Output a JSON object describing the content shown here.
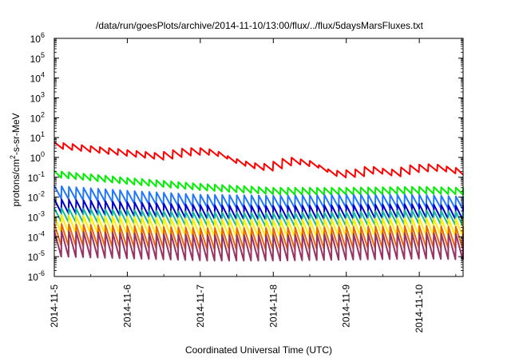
{
  "chart_data": {
    "type": "line",
    "title": "/data/run/goesPlots/archive/2014-11-10/13:00/flux/../flux/5daysMarsFluxes.txt",
    "xlabel": "Coordinated Universal Time (UTC)",
    "ylabel_parts": {
      "main": "protons/cm",
      "sup": "2",
      "rest": "-s-sr-MeV"
    },
    "x_ticks": [
      "2014-11-5",
      "2014-11-6",
      "2014-11-7",
      "2014-11-8",
      "2014-11-9",
      "2014-11-10"
    ],
    "x_range_days": [
      0,
      5.6
    ],
    "y_scale": "log",
    "y_exponents": [
      -6,
      -5,
      -4,
      -3,
      -2,
      -1,
      0,
      1,
      2,
      3,
      4,
      5,
      6
    ],
    "y_tick_base": "10",
    "grid": false,
    "legend": "none",
    "series": [
      {
        "color": "#ff0000",
        "kind": "sawtooth",
        "period_days": 0.125,
        "points_day_log10": [
          [
            0,
            0.6
          ],
          [
            0.5,
            0.4
          ],
          [
            1.0,
            0.2
          ],
          [
            1.4,
            0.05
          ],
          [
            1.8,
            0.3
          ],
          [
            2.0,
            0.3
          ],
          [
            2.2,
            0.2
          ],
          [
            2.4,
            -0.15
          ],
          [
            2.7,
            -0.45
          ],
          [
            2.9,
            -0.5
          ],
          [
            3.2,
            -0.15
          ],
          [
            3.5,
            -0.35
          ],
          [
            3.8,
            -0.85
          ],
          [
            4.1,
            -0.8
          ],
          [
            4.3,
            -0.6
          ],
          [
            4.6,
            -0.8
          ],
          [
            4.9,
            -0.55
          ],
          [
            5.2,
            -0.5
          ],
          [
            5.4,
            -0.65
          ],
          [
            5.6,
            -0.75
          ]
        ],
        "amplitude": 0.35
      },
      {
        "color": "#00ee00",
        "kind": "sawtooth",
        "period_days": 0.1,
        "points_day_log10": [
          [
            0,
            -0.85
          ],
          [
            1.0,
            -1.2
          ],
          [
            2.0,
            -1.5
          ],
          [
            3.0,
            -1.7
          ],
          [
            4.0,
            -1.7
          ],
          [
            5.0,
            -1.65
          ],
          [
            5.6,
            -1.7
          ]
        ],
        "amplitude": 0.35
      },
      {
        "color": "#2277ff",
        "kind": "sawtooth",
        "period_days": 0.1,
        "points_day_log10": [
          [
            0,
            -1.75
          ],
          [
            1.0,
            -2.0
          ],
          [
            2.0,
            -2.2
          ],
          [
            3.0,
            -2.25
          ],
          [
            4.0,
            -2.2
          ],
          [
            5.0,
            -2.2
          ],
          [
            5.6,
            -2.3
          ]
        ],
        "amplitude": 0.65
      },
      {
        "color": "#0000cc",
        "kind": "sawtooth",
        "period_days": 0.1,
        "points_day_log10": [
          [
            0,
            -2.45
          ],
          [
            1.0,
            -2.6
          ],
          [
            2.0,
            -2.75
          ],
          [
            3.0,
            -2.8
          ],
          [
            4.0,
            -2.75
          ],
          [
            5.0,
            -2.7
          ],
          [
            5.6,
            -2.8
          ]
        ],
        "amplitude": 0.7
      },
      {
        "color": "#11bb99",
        "kind": "sawtooth",
        "period_days": 0.1,
        "points_day_log10": [
          [
            0,
            -2.9
          ],
          [
            1.0,
            -3.0
          ],
          [
            2.0,
            -3.1
          ],
          [
            3.0,
            -3.15
          ],
          [
            4.0,
            -3.1
          ],
          [
            5.0,
            -3.0
          ],
          [
            5.6,
            -3.1
          ]
        ],
        "amplitude": 0.7
      },
      {
        "color": "#ffee00",
        "kind": "sawtooth",
        "period_days": 0.1,
        "points_day_log10": [
          [
            0,
            -3.35
          ],
          [
            1.0,
            -3.45
          ],
          [
            2.0,
            -3.55
          ],
          [
            3.0,
            -3.6
          ],
          [
            4.0,
            -3.55
          ],
          [
            5.0,
            -3.5
          ],
          [
            5.6,
            -3.55
          ]
        ],
        "amplitude": 0.9
      },
      {
        "color": "#ee6600",
        "kind": "sawtooth",
        "period_days": 0.1,
        "points_day_log10": [
          [
            0,
            -3.9
          ],
          [
            1.0,
            -4.0
          ],
          [
            2.0,
            -4.1
          ],
          [
            3.0,
            -4.1
          ],
          [
            4.0,
            -4.05
          ],
          [
            5.0,
            -4.0
          ],
          [
            5.6,
            -4.05
          ]
        ],
        "amplitude": 1.1
      },
      {
        "color": "#993366",
        "kind": "sawtooth",
        "period_days": 0.1,
        "points_day_log10": [
          [
            0,
            -4.35
          ],
          [
            1.0,
            -4.45
          ],
          [
            2.0,
            -4.55
          ],
          [
            3.0,
            -4.55
          ],
          [
            4.0,
            -4.5
          ],
          [
            5.0,
            -4.45
          ],
          [
            5.6,
            -4.5
          ]
        ],
        "amplitude": 1.3
      }
    ]
  }
}
